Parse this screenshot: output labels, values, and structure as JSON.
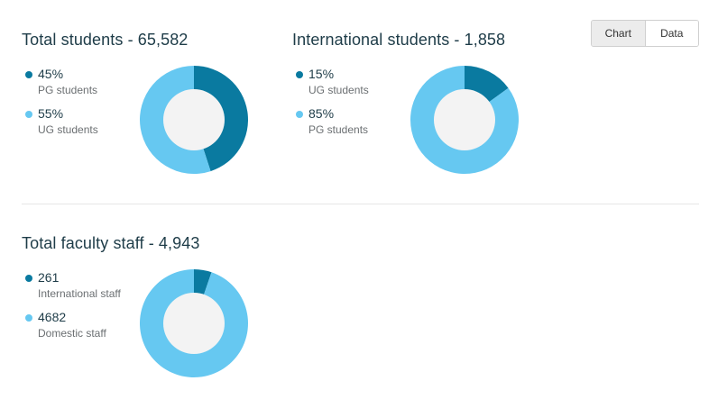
{
  "toggle": {
    "chart_label": "Chart",
    "data_label": "Data"
  },
  "colors": {
    "dark": "#0a7aa0",
    "light": "#66c8f1",
    "hole": "#f3f3f3"
  },
  "charts": [
    {
      "title": "Total students - 65,582",
      "items": [
        {
          "value": "45%",
          "label": "PG students",
          "share": 0.45,
          "color": "#0a7aa0"
        },
        {
          "value": "55%",
          "label": "UG students",
          "share": 0.55,
          "color": "#66c8f1"
        }
      ]
    },
    {
      "title": "International students - 1,858",
      "items": [
        {
          "value": "15%",
          "label": "UG students",
          "share": 0.15,
          "color": "#0a7aa0"
        },
        {
          "value": "85%",
          "label": "PG students",
          "share": 0.85,
          "color": "#66c8f1"
        }
      ]
    },
    {
      "title": "Total faculty staff - 4,943",
      "items": [
        {
          "value": "261",
          "label": "International staff",
          "share": 0.0528,
          "color": "#0a7aa0"
        },
        {
          "value": "4682",
          "label": "Domestic staff",
          "share": 0.9472,
          "color": "#66c8f1"
        }
      ]
    }
  ]
}
